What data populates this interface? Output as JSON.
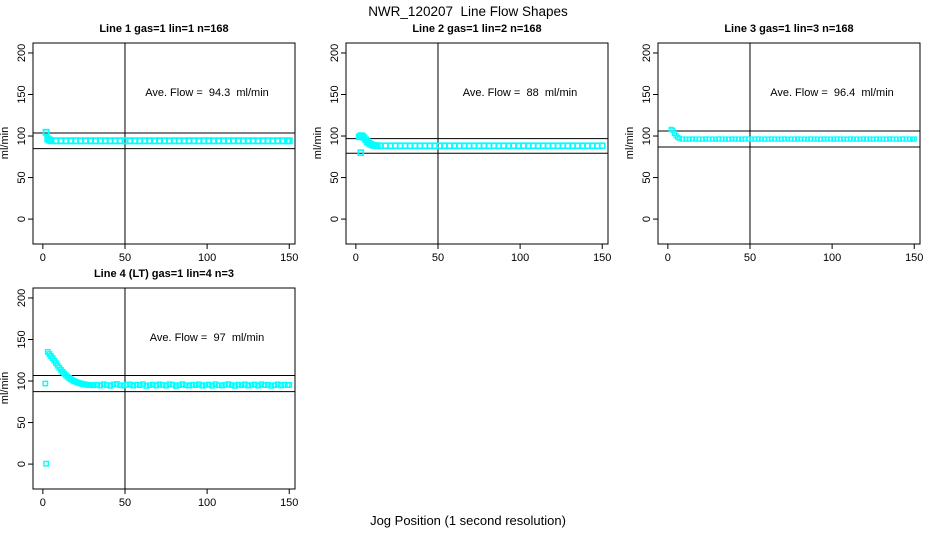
{
  "page_title": "NWR_120207  Line Flow Shapes",
  "x_axis_label": "Jog Position (1 second resolution)",
  "y_axis_label": "ml/min",
  "colors": {
    "points": "#00FFFF",
    "lines": "#000000",
    "background": "#FFFFFF"
  },
  "chart_data": [
    {
      "type": "scatter",
      "title": "Line 1 gas=1 lin=1 n=168",
      "annotation": "Ave. Flow =  94.3  ml/min",
      "ave_flow_ml_min": 94.3,
      "xlabel": "Jog Position (1 second resolution)",
      "ylabel": "ml/min",
      "xlim": [
        -6,
        153.5
      ],
      "ylim": [
        -30,
        212
      ],
      "x_ticks": [
        0,
        50,
        100,
        150
      ],
      "y_ticks": [
        0,
        50,
        100,
        150,
        200
      ],
      "vline_x": 50,
      "hlines_y": [
        103.7,
        84.9
      ],
      "marker": {
        "shape": "open-square",
        "size": 5.2,
        "stroke_width": 1.8
      },
      "points": [
        [
          2,
          104.5
        ],
        [
          3,
          96.5
        ],
        [
          4,
          95.2
        ],
        [
          5,
          94.4
        ],
        [
          8,
          94.3
        ],
        [
          11,
          94.3
        ],
        [
          14,
          94.2
        ],
        [
          17,
          94.3
        ],
        [
          20,
          94.3
        ],
        [
          23,
          94.2
        ],
        [
          26,
          94.3
        ],
        [
          29,
          94.3
        ],
        [
          32,
          94.2
        ],
        [
          35,
          94.3
        ],
        [
          38,
          94.3
        ],
        [
          41,
          94.2
        ],
        [
          44,
          94.3
        ],
        [
          47,
          94.3
        ],
        [
          50,
          94.2
        ],
        [
          53,
          94.3
        ],
        [
          56,
          94.3
        ],
        [
          59,
          94.2
        ],
        [
          62,
          94.3
        ],
        [
          65,
          94.3
        ],
        [
          68,
          94.2
        ],
        [
          71,
          94.3
        ],
        [
          74,
          94.3
        ],
        [
          77,
          94.2
        ],
        [
          80,
          94.3
        ],
        [
          83,
          94.3
        ],
        [
          86,
          94.2
        ],
        [
          89,
          94.3
        ],
        [
          92,
          94.3
        ],
        [
          95,
          94.2
        ],
        [
          98,
          94.3
        ],
        [
          101,
          94.3
        ],
        [
          104,
          94.2
        ],
        [
          107,
          94.3
        ],
        [
          110,
          94.3
        ],
        [
          113,
          94.2
        ],
        [
          116,
          94.3
        ],
        [
          119,
          94.3
        ],
        [
          122,
          94.2
        ],
        [
          125,
          94.3
        ],
        [
          128,
          94.3
        ],
        [
          131,
          94.2
        ],
        [
          134,
          94.3
        ],
        [
          137,
          94.3
        ],
        [
          140,
          94.2
        ],
        [
          143,
          94.3
        ],
        [
          146,
          94.3
        ],
        [
          149,
          94.2
        ],
        [
          150,
          94.3
        ]
      ]
    },
    {
      "type": "scatter",
      "title": "Line 2 gas=1 lin=2 n=168",
      "annotation": "Ave. Flow =  88  ml/min",
      "ave_flow_ml_min": 88,
      "xlabel": "Jog Position (1 second resolution)",
      "ylabel": "ml/min",
      "xlim": [
        -6,
        153.5
      ],
      "ylim": [
        -30,
        212
      ],
      "x_ticks": [
        0,
        50,
        100,
        150
      ],
      "y_ticks": [
        0,
        50,
        100,
        150,
        200
      ],
      "vline_x": 50,
      "hlines_y": [
        96.8,
        79.2
      ],
      "marker": {
        "shape": "open-square",
        "size": 5.0,
        "stroke_width": 1.7
      },
      "points": [
        [
          2,
          99
        ],
        [
          3,
          100.5
        ],
        [
          4,
          100
        ],
        [
          5,
          98
        ],
        [
          6,
          95.5
        ],
        [
          7,
          93.2
        ],
        [
          8,
          91.3
        ],
        [
          9,
          90
        ],
        [
          10,
          89.2
        ],
        [
          11,
          88.7
        ],
        [
          12,
          88.4
        ],
        [
          13,
          88.3
        ],
        [
          3,
          80
        ],
        [
          15,
          88.2
        ],
        [
          18,
          88.3
        ],
        [
          21,
          88.2
        ],
        [
          24,
          88.3
        ],
        [
          27,
          88.2
        ],
        [
          30,
          88.3
        ],
        [
          33,
          88.2
        ],
        [
          36,
          88.3
        ],
        [
          39,
          88.2
        ],
        [
          42,
          88.3
        ],
        [
          45,
          88.2
        ],
        [
          48,
          88.3
        ],
        [
          51,
          88.2
        ],
        [
          54,
          88.3
        ],
        [
          57,
          88.2
        ],
        [
          60,
          88.3
        ],
        [
          63,
          88.2
        ],
        [
          66,
          88.3
        ],
        [
          69,
          88.2
        ],
        [
          72,
          88.3
        ],
        [
          75,
          88.2
        ],
        [
          78,
          88.3
        ],
        [
          81,
          88.2
        ],
        [
          84,
          88.3
        ],
        [
          87,
          88.2
        ],
        [
          90,
          88.3
        ],
        [
          93,
          88.2
        ],
        [
          96,
          88.3
        ],
        [
          99,
          88.2
        ],
        [
          102,
          88.3
        ],
        [
          105,
          88.2
        ],
        [
          108,
          88.3
        ],
        [
          111,
          88.2
        ],
        [
          114,
          88.3
        ],
        [
          117,
          88.2
        ],
        [
          120,
          88.3
        ],
        [
          123,
          88.2
        ],
        [
          126,
          88.3
        ],
        [
          129,
          88.2
        ],
        [
          132,
          88.3
        ],
        [
          135,
          88.2
        ],
        [
          138,
          88.3
        ],
        [
          141,
          88.2
        ],
        [
          144,
          88.3
        ],
        [
          147,
          88.2
        ],
        [
          150,
          88.3
        ]
      ]
    },
    {
      "type": "scatter",
      "title": "Line 3 gas=1 lin=3 n=168",
      "annotation": "Ave. Flow =  96.4  ml/min",
      "ave_flow_ml_min": 96.4,
      "xlabel": "Jog Position (1 second resolution)",
      "ylabel": "ml/min",
      "xlim": [
        -6,
        153.5
      ],
      "ylim": [
        -30,
        212
      ],
      "x_ticks": [
        0,
        50,
        100,
        150
      ],
      "y_ticks": [
        0,
        50,
        100,
        150,
        200
      ],
      "vline_x": 50,
      "hlines_y": [
        106.0,
        86.8
      ],
      "marker": {
        "shape": "open-square",
        "size": 4.0,
        "stroke_width": 1.2
      },
      "points": [
        [
          2,
          108
        ],
        [
          3,
          107
        ],
        [
          4,
          103
        ],
        [
          5,
          100.5
        ],
        [
          6,
          98.5
        ],
        [
          7,
          97.3
        ],
        [
          9,
          96.3
        ],
        [
          11,
          96.4
        ],
        [
          13,
          96.2
        ],
        [
          15,
          96.5
        ],
        [
          17,
          96.3
        ],
        [
          19,
          96.4
        ],
        [
          21,
          96.2
        ],
        [
          23,
          96.5
        ],
        [
          25,
          96.3
        ],
        [
          27,
          96.4
        ],
        [
          29,
          96.2
        ],
        [
          31,
          96.5
        ],
        [
          33,
          96.3
        ],
        [
          35,
          96.4
        ],
        [
          37,
          96.2
        ],
        [
          39,
          96.5
        ],
        [
          41,
          96.3
        ],
        [
          43,
          96.4
        ],
        [
          45,
          96.2
        ],
        [
          47,
          96.5
        ],
        [
          49,
          96.3
        ],
        [
          51,
          96.4
        ],
        [
          53,
          96.2
        ],
        [
          55,
          96.5
        ],
        [
          57,
          96.3
        ],
        [
          59,
          96.4
        ],
        [
          61,
          96.2
        ],
        [
          63,
          96.5
        ],
        [
          65,
          96.3
        ],
        [
          67,
          96.4
        ],
        [
          69,
          96.2
        ],
        [
          71,
          96.5
        ],
        [
          73,
          96.3
        ],
        [
          75,
          96.4
        ],
        [
          77,
          96.2
        ],
        [
          79,
          96.5
        ],
        [
          81,
          96.3
        ],
        [
          83,
          96.4
        ],
        [
          85,
          96.2
        ],
        [
          87,
          96.5
        ],
        [
          89,
          96.3
        ],
        [
          91,
          96.4
        ],
        [
          93,
          96.2
        ],
        [
          95,
          96.5
        ],
        [
          97,
          96.3
        ],
        [
          99,
          96.4
        ],
        [
          101,
          96.2
        ],
        [
          103,
          96.5
        ],
        [
          105,
          96.3
        ],
        [
          107,
          96.4
        ],
        [
          109,
          96.2
        ],
        [
          111,
          96.5
        ],
        [
          113,
          96.3
        ],
        [
          115,
          96.4
        ],
        [
          117,
          96.2
        ],
        [
          119,
          96.5
        ],
        [
          121,
          96.3
        ],
        [
          123,
          96.4
        ],
        [
          125,
          96.2
        ],
        [
          127,
          96.5
        ],
        [
          129,
          96.3
        ],
        [
          131,
          96.4
        ],
        [
          133,
          96.2
        ],
        [
          135,
          96.5
        ],
        [
          137,
          96.3
        ],
        [
          139,
          96.4
        ],
        [
          141,
          96.2
        ],
        [
          143,
          96.5
        ],
        [
          145,
          96.3
        ],
        [
          147,
          96.4
        ],
        [
          149,
          96.2
        ],
        [
          150,
          96.4
        ]
      ]
    },
    {
      "type": "scatter",
      "title": "Line 4 (LT) gas=1 lin=4 n=3",
      "annotation": "Ave. Flow =  97  ml/min",
      "ave_flow_ml_min": 97,
      "xlabel": "Jog Position (1 second resolution)",
      "ylabel": "ml/min",
      "xlim": [
        -6,
        153.5
      ],
      "ylim": [
        -30,
        212
      ],
      "x_ticks": [
        0,
        50,
        100,
        150
      ],
      "y_ticks": [
        0,
        50,
        100,
        150,
        200
      ],
      "vline_x": 50,
      "hlines_y": [
        106.7,
        87.3
      ],
      "marker": {
        "shape": "open-square",
        "size": 4.4,
        "stroke_width": 1.4
      },
      "points": [
        [
          2,
          0.5
        ],
        [
          1.5,
          97
        ],
        [
          3,
          135
        ],
        [
          4,
          132.5
        ],
        [
          5,
          130
        ],
        [
          6,
          127.5
        ],
        [
          7,
          124.5
        ],
        [
          8,
          121.5
        ],
        [
          9,
          118.5
        ],
        [
          10,
          116
        ],
        [
          11,
          113.5
        ],
        [
          12,
          111
        ],
        [
          13,
          109
        ],
        [
          14,
          107
        ],
        [
          15,
          105.2
        ],
        [
          16,
          103.6
        ],
        [
          17,
          102.2
        ],
        [
          18,
          101
        ],
        [
          19,
          100
        ],
        [
          20,
          99.1
        ],
        [
          21,
          98.3
        ],
        [
          22,
          97.6
        ],
        [
          23,
          97
        ],
        [
          24,
          96.5
        ],
        [
          25,
          96.1
        ],
        [
          26,
          95.8
        ],
        [
          27,
          95.5
        ],
        [
          28,
          95.3
        ],
        [
          29,
          95.1
        ],
        [
          30,
          95
        ],
        [
          31,
          94.9
        ],
        [
          33,
          95.5
        ],
        [
          35,
          94.6
        ],
        [
          37,
          96.1
        ],
        [
          39,
          95.2
        ],
        [
          41,
          94.3
        ],
        [
          43,
          95.8
        ],
        [
          45,
          96.4
        ],
        [
          47,
          95
        ],
        [
          49,
          94.6
        ],
        [
          51,
          95.3
        ],
        [
          53,
          96
        ],
        [
          55,
          94.5
        ],
        [
          57,
          95.6
        ],
        [
          59,
          95.1
        ],
        [
          61,
          96.2
        ],
        [
          63,
          94.2
        ],
        [
          65,
          95
        ],
        [
          67,
          95.7
        ],
        [
          69,
          94.6
        ],
        [
          71,
          96
        ],
        [
          73,
          95.2
        ],
        [
          75,
          94.5
        ],
        [
          77,
          96.1
        ],
        [
          79,
          95.6
        ],
        [
          81,
          94.1
        ],
        [
          83,
          95.1
        ],
        [
          85,
          96.2
        ],
        [
          87,
          95
        ],
        [
          89,
          94.6
        ],
        [
          91,
          95.5
        ],
        [
          93,
          95.1
        ],
        [
          95,
          96
        ],
        [
          97,
          94.4
        ],
        [
          99,
          95.2
        ],
        [
          101,
          95.7
        ],
        [
          103,
          94.3
        ],
        [
          105,
          96.1
        ],
        [
          107,
          95
        ],
        [
          109,
          94.7
        ],
        [
          111,
          95.4
        ],
        [
          113,
          96.2
        ],
        [
          115,
          95.1
        ],
        [
          117,
          94.2
        ],
        [
          119,
          95.6
        ],
        [
          121,
          95
        ],
        [
          123,
          96
        ],
        [
          125,
          94.6
        ],
        [
          127,
          95.2
        ],
        [
          129,
          95.8
        ],
        [
          131,
          94.4
        ],
        [
          133,
          96.1
        ],
        [
          135,
          95.1
        ],
        [
          137,
          95.5
        ],
        [
          139,
          94.3
        ],
        [
          141,
          95
        ],
        [
          143,
          96
        ],
        [
          145,
          94.7
        ],
        [
          147,
          95.6
        ],
        [
          149,
          95.2
        ],
        [
          150,
          95.3
        ]
      ]
    }
  ]
}
